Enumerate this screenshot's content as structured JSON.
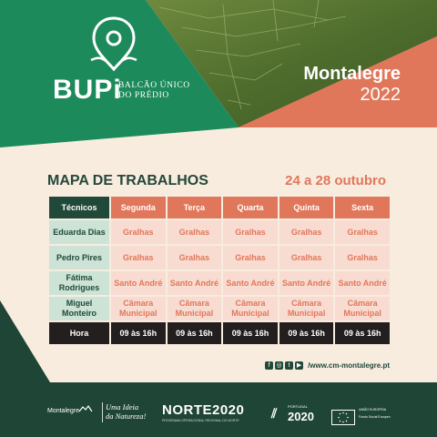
{
  "brand": {
    "logo_text": "BUPi",
    "subtitle_line1": "BALCÃO ÚNICO",
    "subtitle_line2": "DO PRÉDIO"
  },
  "location": {
    "name": "Montalegre",
    "year": "2022"
  },
  "heading": {
    "title": "MAPA DE TRABALHOS",
    "dates": "24 a 28 outubro"
  },
  "table": {
    "corner": "Técnicos",
    "days": [
      "Segunda",
      "Terça",
      "Quarta",
      "Quinta",
      "Sexta"
    ],
    "rows": [
      {
        "name_line1": "Eduarda Dias",
        "name_line2": "",
        "cells": [
          [
            "Gralhas",
            ""
          ],
          [
            "Gralhas",
            ""
          ],
          [
            "Gralhas",
            ""
          ],
          [
            "Gralhas",
            ""
          ],
          [
            "Gralhas",
            ""
          ]
        ]
      },
      {
        "name_line1": "Pedro Pires",
        "name_line2": "",
        "cells": [
          [
            "Gralhas",
            ""
          ],
          [
            "Gralhas",
            ""
          ],
          [
            "Gralhas",
            ""
          ],
          [
            "Gralhas",
            ""
          ],
          [
            "Gralhas",
            ""
          ]
        ]
      },
      {
        "name_line1": "Fátima",
        "name_line2": "Rodrigues",
        "cells": [
          [
            "Santo André",
            ""
          ],
          [
            "Santo André",
            ""
          ],
          [
            "Santo André",
            ""
          ],
          [
            "Santo André",
            ""
          ],
          [
            "Santo André",
            ""
          ]
        ]
      },
      {
        "name_line1": "Miguel",
        "name_line2": "Monteiro",
        "cells": [
          [
            "Câmara",
            "Municipal"
          ],
          [
            "Câmara",
            "Municipal"
          ],
          [
            "Câmara",
            "Municipal"
          ],
          [
            "Câmara",
            "Municipal"
          ],
          [
            "Câmara",
            "Municipal"
          ]
        ]
      }
    ],
    "hours_label": "Hora",
    "hours": [
      "09 às 16h",
      "09 às 16h",
      "09 às 16h",
      "09 às 16h",
      "09 às 16h"
    ]
  },
  "social": {
    "icons": [
      "facebook-icon",
      "instagram-icon",
      "twitter-icon",
      "youtube-icon"
    ],
    "glyphs": [
      "f",
      "◎",
      "t",
      "▶"
    ],
    "url": "/www.cm-montalegre.pt"
  },
  "footer": {
    "municipality": "Montalegre",
    "tagline_line1": "Uma Ideia",
    "tagline_line2": "da Natureza!",
    "norte": "NORTE2020",
    "norte_sub": "PROGRAMA OPERACIONAL REGIONAL DO NORTE",
    "pt_small": "PORTUGAL",
    "pt_big": "2020",
    "eu_line1": "UNIÃO EUROPEIA",
    "eu_line2": "Fundo Social Europeu"
  },
  "colors": {
    "dark_green": "#1e4536",
    "brand_green": "#1d8a5b",
    "coral": "#e0775b",
    "cream": "#f8ecdf"
  }
}
